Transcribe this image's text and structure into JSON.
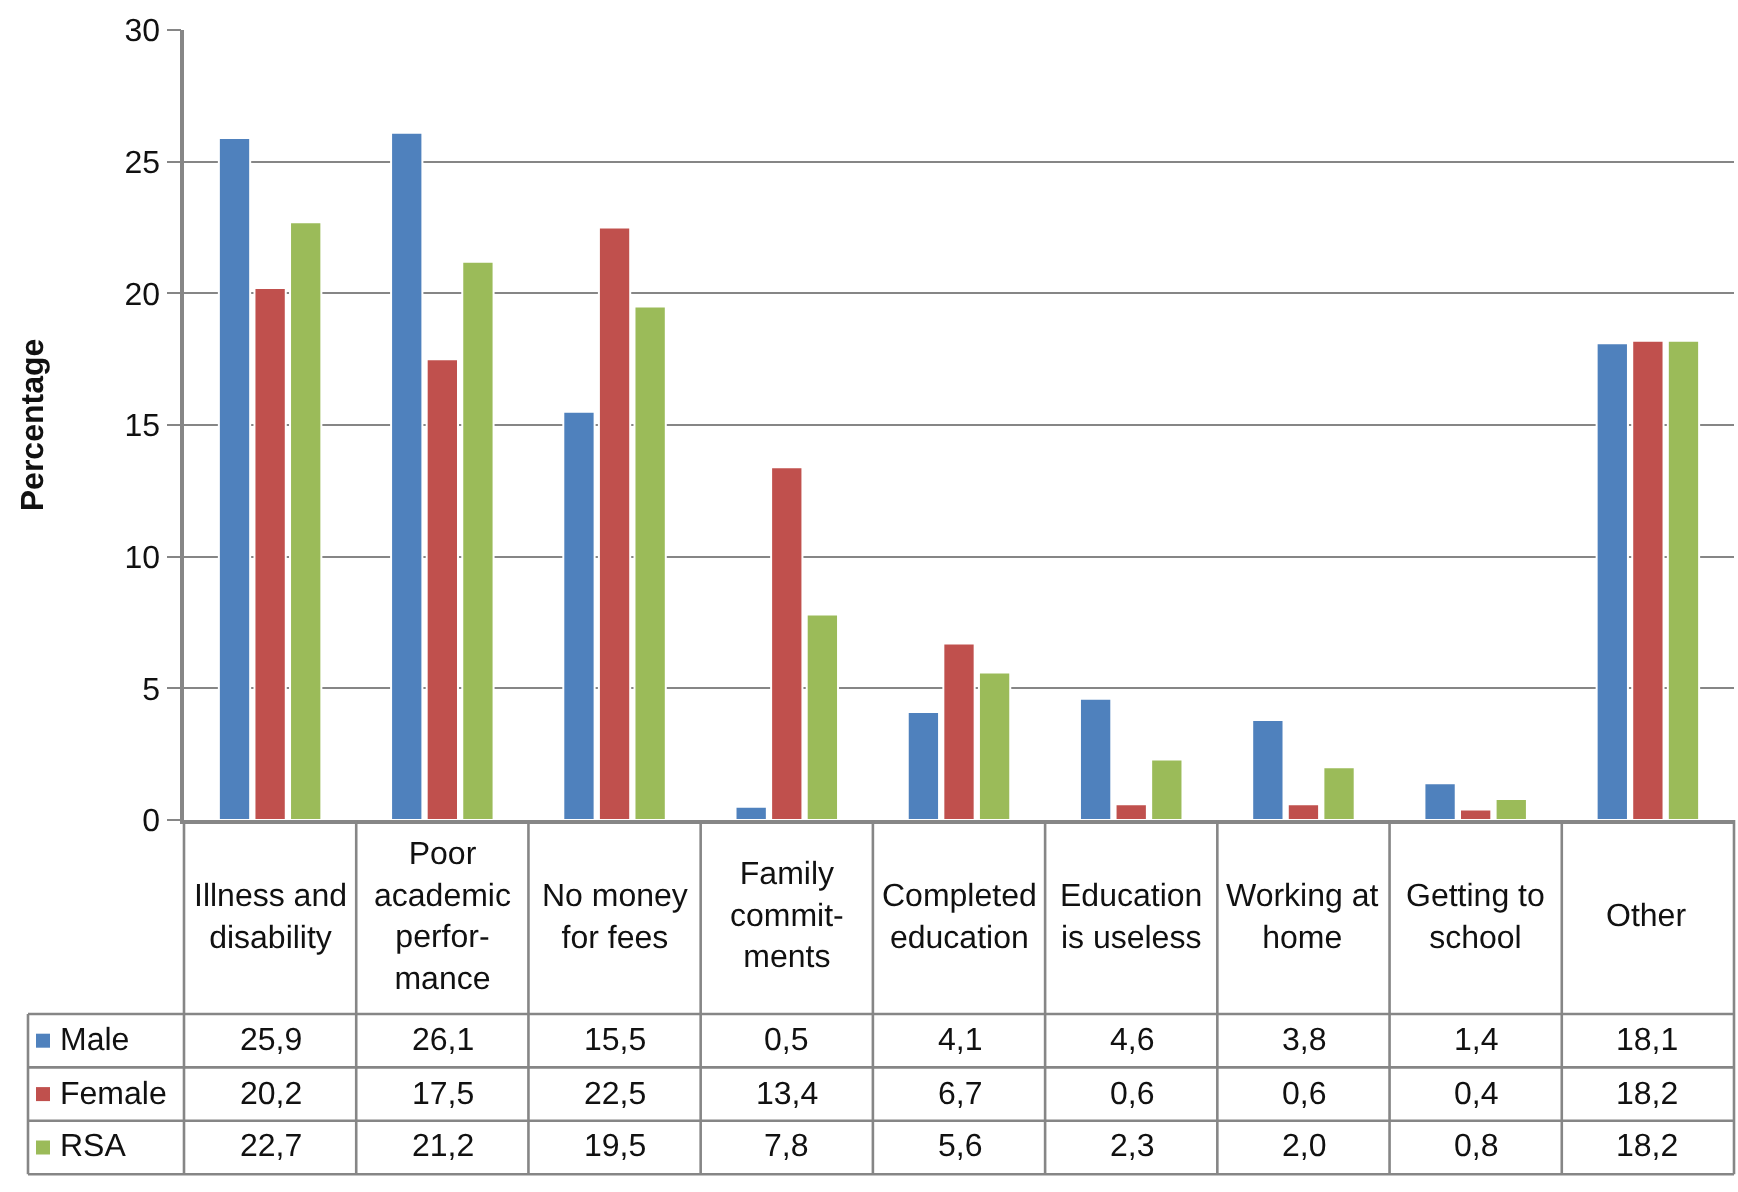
{
  "chart_data": {
    "type": "bar",
    "ylabel": "Percentage",
    "categories": [
      "Illness and\ndisability",
      "Poor\nacademic\nperfor-\nmance",
      "No money\nfor fees",
      "Family\ncommit-\nments",
      "Completed\neducation",
      "Education\nis useless",
      "Working at\nhome",
      "Getting to\nschool",
      "Other"
    ],
    "series": [
      {
        "name": "Male",
        "color": "#4f81bd",
        "values": [
          25.9,
          26.1,
          15.5,
          0.5,
          4.1,
          4.6,
          3.8,
          1.4,
          18.1
        ],
        "value_labels": [
          "25,9",
          "26,1",
          "15,5",
          "0,5",
          "4,1",
          "4,6",
          "3,8",
          "1,4",
          "18,1"
        ]
      },
      {
        "name": "Female",
        "color": "#c0504d",
        "values": [
          20.2,
          17.5,
          22.5,
          13.4,
          6.7,
          0.6,
          0.6,
          0.4,
          18.2
        ],
        "value_labels": [
          "20,2",
          "17,5",
          "22,5",
          "13,4",
          "6,7",
          "0,6",
          "0,6",
          "0,4",
          "18,2"
        ]
      },
      {
        "name": "RSA",
        "color": "#9bbb59",
        "values": [
          22.7,
          21.2,
          19.5,
          7.8,
          5.6,
          2.3,
          2.0,
          0.8,
          18.2
        ],
        "value_labels": [
          "22,7",
          "21,2",
          "19,5",
          "7,8",
          "5,6",
          "2,3",
          "2,0",
          "0,8",
          "18,2"
        ]
      }
    ],
    "ylim": [
      0,
      30
    ],
    "yticks": [
      0,
      5,
      10,
      15,
      20,
      25,
      30
    ],
    "grid": "y",
    "legend": "bottom left"
  }
}
